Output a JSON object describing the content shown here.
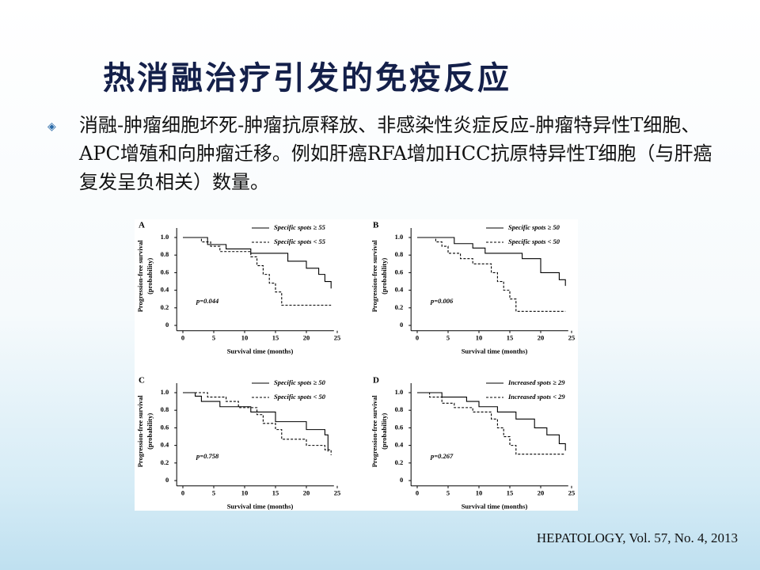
{
  "title": "热消融治疗引发的免疫反应",
  "bullet": "消融-肿瘤细胞坏死-肿瘤抗原释放、非感染性炎症反应-肿瘤特异性T细胞、APC增殖和向肿瘤迁移。例如肝癌RFA增加HCC抗原特异性T细胞（与肝癌复发呈负相关）数量。",
  "citation": "HEPATOLOGY, Vol. 57, No. 4, 2013",
  "chart_data": [
    {
      "type": "step",
      "panel": "A",
      "xlabel": "Survival time (months)",
      "ylabel": [
        "Progression-free survival",
        "(probability)"
      ],
      "annotation": "p=0.044",
      "xlim": [
        -1,
        26
      ],
      "ylim": [
        -0.06,
        1.18
      ],
      "xticks": [
        0,
        5,
        10,
        15,
        20,
        25
      ],
      "yticks": [
        0,
        0.2,
        0.4,
        0.6,
        0.8,
        {
          "value": 1,
          "label": "1.0"
        }
      ],
      "series": [
        {
          "name": "Specific spots ≥ 55",
          "color": "#000000",
          "style": "solid",
          "x": [
            0,
            4,
            7,
            11,
            17,
            20,
            22,
            23,
            24
          ],
          "values": [
            1,
            0.92,
            0.87,
            0.82,
            0.73,
            0.65,
            0.58,
            0.5,
            0.42
          ]
        },
        {
          "name": "Specific spots < 55",
          "color": "#000000",
          "style": "dashed",
          "x": [
            0,
            3,
            4.5,
            6,
            11,
            12,
            13,
            14,
            15,
            16,
            24
          ],
          "values": [
            1,
            0.95,
            0.9,
            0.84,
            0.78,
            0.68,
            0.58,
            0.48,
            0.38,
            0.23,
            0.23
          ]
        }
      ]
    },
    {
      "type": "step",
      "panel": "B",
      "xlabel": "Survival time (months)",
      "ylabel": [
        "Progression-free survival",
        "(probability)"
      ],
      "annotation": "p=0.006",
      "xlim": [
        -1,
        26
      ],
      "ylim": [
        -0.06,
        1.18
      ],
      "xticks": [
        0,
        5,
        10,
        15,
        20,
        25
      ],
      "yticks": [
        0,
        0.2,
        0.4,
        0.6,
        0.8,
        {
          "value": 1,
          "label": "1.0"
        }
      ],
      "series": [
        {
          "name": "Specific spots ≥ 50",
          "color": "#000000",
          "style": "solid",
          "x": [
            0,
            6,
            9,
            11,
            17,
            20,
            23,
            24
          ],
          "values": [
            1,
            0.93,
            0.88,
            0.82,
            0.76,
            0.6,
            0.52,
            0.45
          ]
        },
        {
          "name": "Specific spots < 50",
          "color": "#000000",
          "style": "dashed",
          "x": [
            0,
            3,
            4,
            5,
            7,
            9,
            12,
            13,
            14,
            15,
            16,
            24
          ],
          "values": [
            1,
            0.95,
            0.9,
            0.82,
            0.76,
            0.7,
            0.6,
            0.5,
            0.4,
            0.3,
            0.16,
            0.16
          ]
        }
      ]
    },
    {
      "type": "step",
      "panel": "C",
      "xlabel": "Survival time (months)",
      "ylabel": [
        "Progression-free survival",
        "(probability)"
      ],
      "annotation": "p=0.758",
      "xlim": [
        -1,
        26
      ],
      "ylim": [
        -0.06,
        1.18
      ],
      "xticks": [
        0,
        5,
        10,
        15,
        20,
        25
      ],
      "yticks": [
        0,
        0.2,
        0.4,
        0.6,
        0.8,
        {
          "value": 1,
          "label": "1.0"
        }
      ],
      "series": [
        {
          "name": "Specific spots ≥ 50",
          "color": "#000000",
          "style": "solid",
          "x": [
            0,
            2,
            3,
            6,
            11,
            15,
            20,
            23,
            23.5
          ],
          "values": [
            1,
            0.96,
            0.9,
            0.84,
            0.78,
            0.67,
            0.58,
            0.52,
            0.33
          ]
        },
        {
          "name": "Specific spots < 50",
          "color": "#000000",
          "style": "dashed",
          "x": [
            0,
            4,
            7,
            9,
            12,
            13,
            15,
            16,
            20,
            23,
            24
          ],
          "values": [
            1,
            0.95,
            0.9,
            0.83,
            0.75,
            0.65,
            0.58,
            0.47,
            0.4,
            0.35,
            0.29
          ]
        }
      ]
    },
    {
      "type": "step",
      "panel": "D",
      "xlabel": "Survival time (months)",
      "ylabel": [
        "Progression-free survival",
        "(probability)"
      ],
      "annotation": "p=0.267",
      "xlim": [
        -1,
        26
      ],
      "ylim": [
        -0.06,
        1.18
      ],
      "xticks": [
        0,
        5,
        10,
        15,
        20,
        25
      ],
      "yticks": [
        0,
        0.2,
        0.4,
        0.6,
        0.8,
        {
          "value": 1,
          "label": "1.0"
        }
      ],
      "series": [
        {
          "name": "Increased spots ≥ 29",
          "color": "#000000",
          "style": "solid",
          "x": [
            0,
            4,
            8,
            10,
            13,
            16,
            19,
            21,
            23,
            24
          ],
          "values": [
            1,
            0.95,
            0.9,
            0.84,
            0.78,
            0.7,
            0.6,
            0.52,
            0.42,
            0.34
          ]
        },
        {
          "name": "Increased spots < 29",
          "color": "#000000",
          "style": "dashed",
          "x": [
            0,
            2,
            4,
            6,
            9,
            12,
            13,
            14,
            15,
            16,
            24
          ],
          "values": [
            1,
            0.95,
            0.88,
            0.83,
            0.78,
            0.7,
            0.6,
            0.5,
            0.4,
            0.3,
            0.3
          ]
        }
      ]
    }
  ]
}
